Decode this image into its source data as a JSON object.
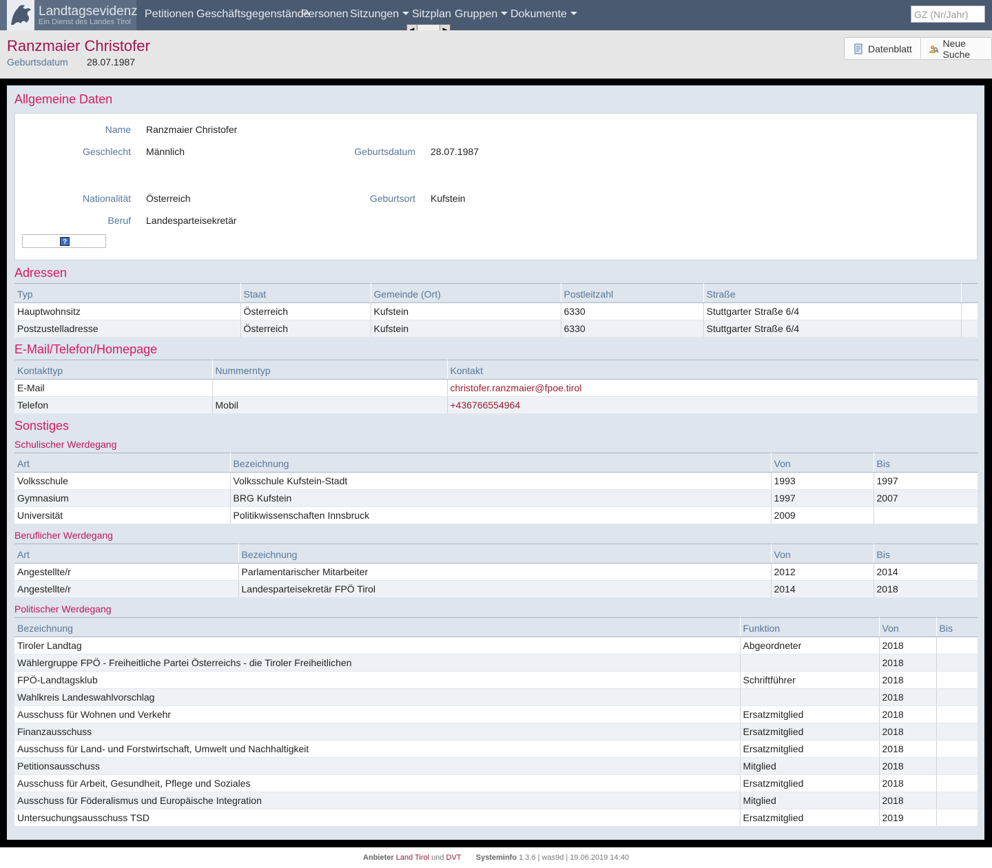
{
  "app": {
    "title": "Landtagsevidenz",
    "subtitle": "Ein Dienst des Landes Tirol"
  },
  "nav": {
    "items": [
      "Petitionen",
      "Geschäftsgegenstände",
      "Personen",
      "Sitzungen",
      "Sitzplan",
      "Gruppen",
      "Dokumente"
    ],
    "search_placeholder": "GZ (Nr/Jahr)"
  },
  "person": {
    "name": "Ranzmaier Christofer",
    "birth_label": "Geburtsdatum",
    "birth_value": "28.07.1987"
  },
  "toolbar": {
    "datenblatt": "Datenblatt",
    "neue_suche": "Neue Suche"
  },
  "general": {
    "title": "Allgemeine Daten",
    "name_label": "Name",
    "name_value": "Ranzmaier Christofer",
    "gender_label": "Geschlecht",
    "gender_value": "Männlich",
    "birth_label": "Geburtsdatum",
    "birth_value": "28.07.1987",
    "nationality_label": "Nationalität",
    "nationality_value": "Österreich",
    "birthplace_label": "Geburtsort",
    "birthplace_value": "Kufstein",
    "job_label": "Beruf",
    "job_value": "Landesparteisekretär",
    "help_icon_text": "?"
  },
  "addresses": {
    "title": "Adressen",
    "columns": [
      "Typ",
      "Staat",
      "Gemeinde (Ort)",
      "Postleitzahl",
      "Straße",
      ""
    ],
    "rows": [
      [
        "Hauptwohnsitz",
        "Österreich",
        "Kufstein",
        "6330",
        "Stuttgarter Straße 6/4",
        ""
      ],
      [
        "Postzustelladresse",
        "Österreich",
        "Kufstein",
        "6330",
        "Stuttgarter Straße 6/4",
        ""
      ]
    ]
  },
  "contacts": {
    "title": "E-Mail/Telefon/Homepage",
    "columns": [
      "Kontakttyp",
      "Nummerntyp",
      "Kontakt"
    ],
    "rows": [
      [
        "E-Mail",
        "",
        "christofer.ranzmaier@fpoe.tirol"
      ],
      [
        "Telefon",
        "Mobil",
        "+436766554964"
      ]
    ]
  },
  "misc": {
    "title": "Sonstiges",
    "school": {
      "title": "Schulischer Werdegang",
      "columns": [
        "Art",
        "Bezeichnung",
        "Von",
        "Bis"
      ],
      "rows": [
        [
          "Volksschule",
          "Volksschule Kufstein-Stadt",
          "1993",
          "1997"
        ],
        [
          "Gymnasium",
          "BRG Kufstein",
          "1997",
          "2007"
        ],
        [
          "Universität",
          "Politikwissenschaften Innsbruck",
          "2009",
          ""
        ]
      ]
    },
    "career": {
      "title": "Beruflicher Werdegang",
      "columns": [
        "Art",
        "Bezeichnung",
        "Von",
        "Bis"
      ],
      "rows": [
        [
          "Angestellte/r",
          "Parlamentarischer Mitarbeiter",
          "2012",
          "2014"
        ],
        [
          "Angestellte/r",
          "Landesparteisekretär FPÖ Tirol",
          "2014",
          "2018"
        ]
      ]
    },
    "political": {
      "title": "Politischer Werdegang",
      "columns": [
        "Bezeichnung",
        "Funktion",
        "Von",
        "Bis"
      ],
      "rows": [
        [
          "Tiroler Landtag",
          "Abgeordneter",
          "2018",
          ""
        ],
        [
          "Wählergruppe FPÖ - Freiheitliche Partei Österreichs - die Tiroler Freiheitlichen",
          "",
          "2018",
          ""
        ],
        [
          "FPÖ-Landtagsklub",
          "Schriftführer",
          "2018",
          ""
        ],
        [
          "Wahlkreis Landeswahlvorschlag",
          "",
          "2018",
          ""
        ],
        [
          "Ausschuss für Wohnen und Verkehr",
          "Ersatzmitglied",
          "2018",
          ""
        ],
        [
          "Finanzausschuss",
          "Ersatzmitglied",
          "2018",
          ""
        ],
        [
          "Ausschuss für Land- und Forstwirtschaft, Umwelt und Nachhaltigkeit",
          "Ersatzmitglied",
          "2018",
          ""
        ],
        [
          "Petitionsausschuss",
          "Mitglied",
          "2018",
          ""
        ],
        [
          "Ausschuss für Arbeit, Gesundheit, Pflege und Soziales",
          "Ersatzmitglied",
          "2018",
          ""
        ],
        [
          "Ausschuss für Föderalismus und Europäische Integration",
          "Mitglied",
          "2018",
          ""
        ],
        [
          "Untersuchungsausschuss TSD",
          "Ersatzmitglied",
          "2019",
          ""
        ]
      ]
    }
  },
  "footer": {
    "provider_label": "Anbieter",
    "provider_1": "Land Tirol",
    "and": "und",
    "provider_2": "DVT",
    "sysinfo_label": "Systeminfo",
    "sysinfo_value": "1.3.6 | was9d | 19.06.2019 14:40"
  },
  "colors": {
    "navbar": "#4a5a70",
    "accent_title": "#a0144e",
    "section_title": "#d81b60",
    "label": "#56779a",
    "link": "#9b1b30"
  }
}
